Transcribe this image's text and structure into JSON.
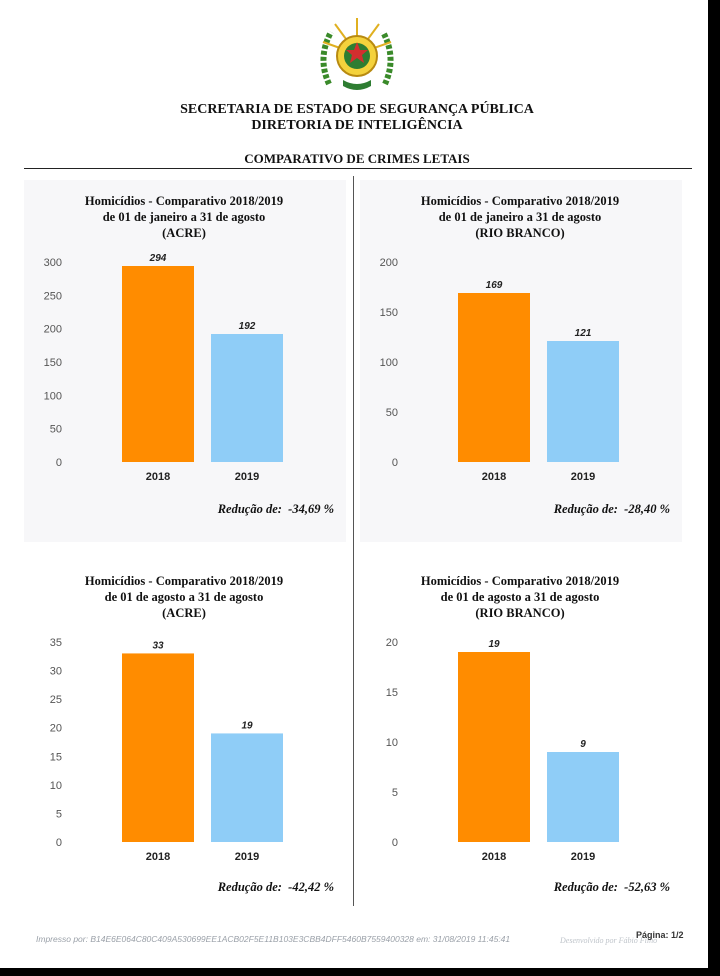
{
  "header": {
    "line1": "SECRETARIA DE ESTADO DE SEGURANÇA PÚBLICA",
    "line2": "DIRETORIA DE INTELIGÊNCIA",
    "section_title": "COMPARATIVO DE CRIMES LETAIS"
  },
  "colors": {
    "bar_2018": "#ff8c00",
    "bar_2019": "#8fcdf7",
    "axis_text": "#555555"
  },
  "chart_data": [
    {
      "type": "bar",
      "title_lines": [
        "Homicídios - Comparativo 2018/2019",
        "de 01 de janeiro a 31 de agosto",
        "(ACRE)"
      ],
      "categories": [
        "2018",
        "2019"
      ],
      "values": [
        294,
        192
      ],
      "value_labels": [
        "294",
        "192"
      ],
      "ylim": [
        0,
        300
      ],
      "yticks": [
        0,
        50,
        100,
        150,
        200,
        250,
        300
      ],
      "reduction_label": "Redução de:",
      "reduction_value": "-34,69 %"
    },
    {
      "type": "bar",
      "title_lines": [
        "Homicídios - Comparativo 2018/2019",
        "de 01 de janeiro a 31 de agosto",
        "(RIO BRANCO)"
      ],
      "categories": [
        "2018",
        "2019"
      ],
      "values": [
        169,
        121
      ],
      "value_labels": [
        "169",
        "121"
      ],
      "ylim": [
        0,
        200
      ],
      "yticks": [
        0,
        50,
        100,
        150,
        200
      ],
      "reduction_label": "Redução de:",
      "reduction_value": "-28,40 %"
    },
    {
      "type": "bar",
      "title_lines": [
        "Homicídios - Comparativo 2018/2019",
        "de 01 de agosto a 31 de agosto",
        "(ACRE)"
      ],
      "categories": [
        "2018",
        "2019"
      ],
      "values": [
        33,
        19
      ],
      "value_labels": [
        "33",
        "19"
      ],
      "ylim": [
        0,
        35
      ],
      "yticks": [
        0,
        5,
        10,
        15,
        20,
        25,
        30,
        35
      ],
      "reduction_label": "Redução de:",
      "reduction_value": "-42,42 %"
    },
    {
      "type": "bar",
      "title_lines": [
        "Homicídios - Comparativo 2018/2019",
        "de 01 de agosto a 31 de agosto",
        "(RIO BRANCO)"
      ],
      "categories": [
        "2018",
        "2019"
      ],
      "values": [
        19,
        9
      ],
      "value_labels": [
        "19",
        "9"
      ],
      "ylim": [
        0,
        20
      ],
      "yticks": [
        0,
        5,
        10,
        15,
        20
      ],
      "reduction_label": "Redução de:",
      "reduction_value": "-52,63 %"
    }
  ],
  "footer": {
    "printed_by": "Impresso por: B14E6E064C80C409A530699EE1ACB02F5E11B103E3CBB4DFF5460B7559400328 em: 31/08/2019 11:45:41",
    "developed_by": "Desenvolvido por Fábio Filho",
    "page": "Página: 1/2"
  }
}
